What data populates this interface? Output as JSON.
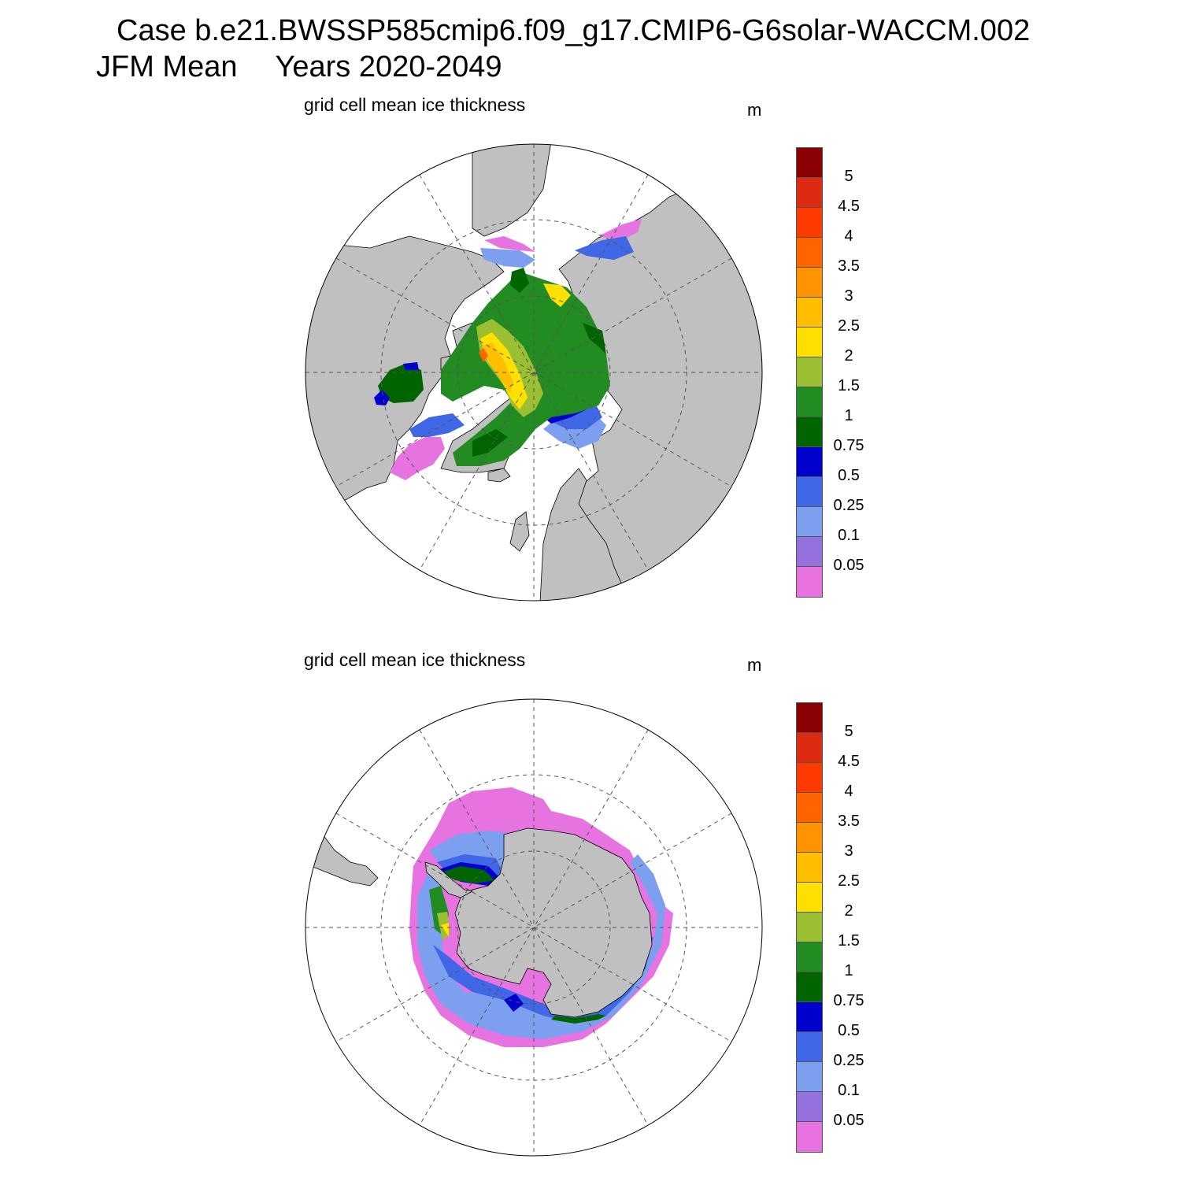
{
  "title": {
    "line1": "Case b.e21.BWSSP585cmip6.f09_g17.CMIP6-G6solar-WACCM.002",
    "line2_season": "JFM Mean",
    "line2_years": "Years 2020-2049"
  },
  "panels": [
    {
      "hemisphere": "north",
      "subtitle": "grid cell mean ice thickness",
      "units": "m"
    },
    {
      "hemisphere": "south",
      "subtitle": "grid cell mean ice thickness",
      "units": "m"
    }
  ],
  "colorbar": {
    "labels": [
      "5",
      "4.5",
      "4",
      "3.5",
      "3",
      "2.5",
      "2",
      "1.5",
      "1",
      "0.75",
      "0.5",
      "0.25",
      "0.1",
      "0.05"
    ],
    "colors": [
      "#8b0000",
      "#dc2b11",
      "#ff3a00",
      "#ff6400",
      "#ff9300",
      "#ffbe00",
      "#ffe000",
      "#9abf32",
      "#228b22",
      "#006400",
      "#0000cd",
      "#3f67e6",
      "#7c9ff0",
      "#9370db",
      "#e673e0"
    ]
  },
  "map_colors": {
    "land": "#c0c0c0",
    "ocean": "#ffffff",
    "grid": "#555555"
  }
}
